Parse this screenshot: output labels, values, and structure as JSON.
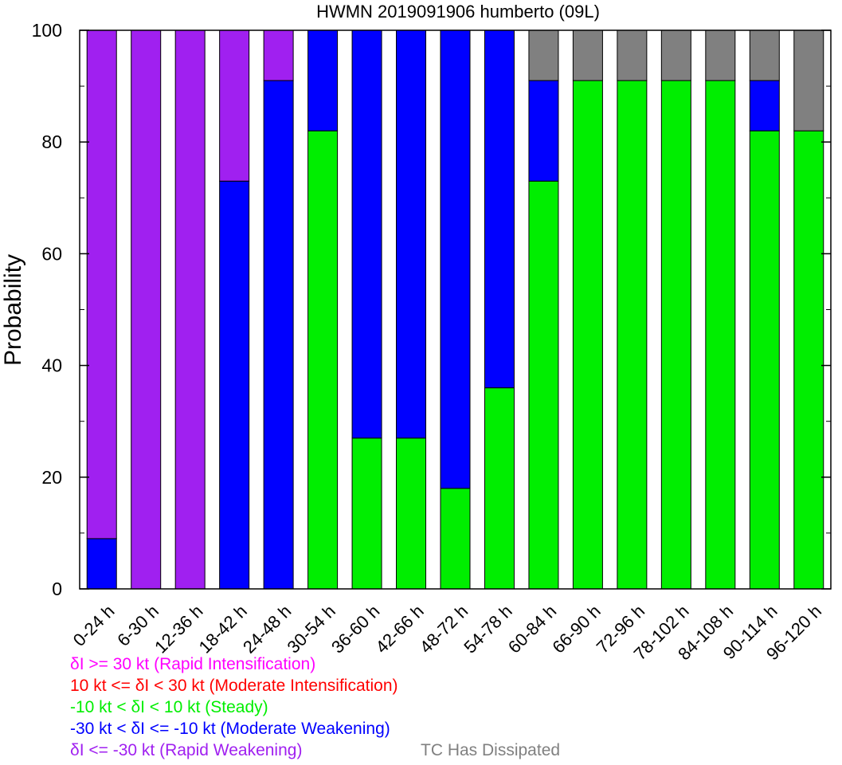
{
  "chart_data": {
    "type": "bar",
    "stacked": true,
    "title": "HWMN 2019091906 humberto (09L)",
    "ylabel": "Probability",
    "xlabel": "",
    "ylim": [
      0,
      100
    ],
    "yticks": [
      0,
      20,
      40,
      60,
      80,
      100
    ],
    "grid": false,
    "categories": [
      "0-24 h",
      "6-30 h",
      "12-36 h",
      "18-42 h",
      "24-48 h",
      "30-54 h",
      "36-60 h",
      "42-66 h",
      "48-72 h",
      "54-78 h",
      "60-84 h",
      "66-90 h",
      "72-96 h",
      "78-102 h",
      "84-108 h",
      "90-114 h",
      "96-120 h"
    ],
    "series": [
      {
        "name": "Steady",
        "color": "#00ee00",
        "values": [
          0,
          0,
          0,
          0,
          0,
          82,
          27,
          27,
          18,
          36,
          73,
          91,
          91,
          91,
          91,
          82,
          82
        ]
      },
      {
        "name": "Moderate Weakening",
        "color": "#0000ff",
        "values": [
          9,
          0,
          0,
          73,
          91,
          18,
          73,
          73,
          82,
          64,
          18,
          0,
          0,
          0,
          0,
          9,
          0
        ]
      },
      {
        "name": "Rapid Weakening",
        "color": "#a020f0",
        "values": [
          91,
          100,
          100,
          27,
          9,
          0,
          0,
          0,
          0,
          0,
          0,
          0,
          0,
          0,
          0,
          0,
          0
        ]
      },
      {
        "name": "TC Has Dissipated",
        "color": "#808080",
        "values": [
          0,
          0,
          0,
          0,
          0,
          0,
          0,
          0,
          0,
          0,
          9,
          9,
          9,
          9,
          9,
          9,
          18
        ]
      }
    ]
  },
  "legend": {
    "entries": [
      {
        "text": "δI >= 30 kt (Rapid Intensification)",
        "color": "#ff00ff"
      },
      {
        "text": "10 kt <= δI < 30 kt (Moderate Intensification)",
        "color": "#ff0000"
      },
      {
        "text": "-10 kt < δI < 10 kt (Steady)",
        "color": "#00ee00"
      },
      {
        "text": "-30 kt < δI <= -10 kt (Moderate Weakening)",
        "color": "#0000ff"
      },
      {
        "text": "δI <= -30 kt (Rapid Weakening)",
        "color": "#a020f0"
      }
    ],
    "dissipated": {
      "text": "TC Has Dissipated",
      "color": "#808080"
    }
  }
}
